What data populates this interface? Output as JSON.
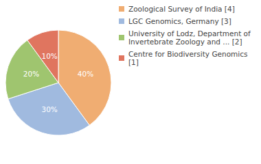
{
  "chart_data": {
    "type": "pie",
    "categories": [
      "Zoological Survey of India [4]",
      "LGC Genomics, Germany [3]",
      "University of Lodz, Department of Invertebrate Zoology and ... [2]",
      "Centre for Biodiversity Genomics [1]"
    ],
    "values": [
      40,
      30,
      20,
      10
    ],
    "value_labels": [
      "40%",
      "30%",
      "20%",
      "10%"
    ],
    "colors": [
      "#f0ad72",
      "#a0badf",
      "#9fc56f",
      "#e0755f"
    ],
    "data_labels": true,
    "legend": "top-right"
  }
}
